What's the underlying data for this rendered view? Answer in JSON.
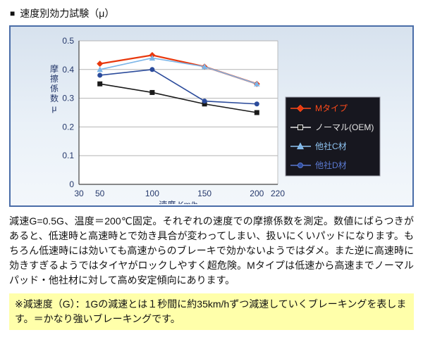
{
  "header": {
    "bullet": "■",
    "title": "速度別効力試験（μ）"
  },
  "chart_data": {
    "type": "line",
    "x": [
      50,
      100,
      150,
      200
    ],
    "series": [
      {
        "name": "Mタイプ",
        "color": "#e8380d",
        "legend_text_color": "#ff4a1a",
        "marker": "diamond",
        "values": [
          0.42,
          0.45,
          0.41,
          0.35
        ]
      },
      {
        "name": "ノーマル(OEM)",
        "color": "#1a1a1a",
        "legend_text_color": "#e6e6e6",
        "marker": "square",
        "values": [
          0.35,
          0.32,
          0.28,
          0.25
        ]
      },
      {
        "name": "他社C材",
        "color": "#7db6e8",
        "legend_text_color": "#8fc4f2",
        "marker": "triangle",
        "values": [
          0.4,
          0.44,
          0.41,
          0.35
        ]
      },
      {
        "name": "他社D材",
        "color": "#2b4b9b",
        "legend_text_color": "#5b79d0",
        "marker": "circle",
        "values": [
          0.38,
          0.4,
          0.29,
          0.28
        ]
      }
    ],
    "xlabel": "速度 Km/h",
    "ylabel": "摩擦係数μ",
    "xticks": [
      30,
      50,
      100,
      150,
      200,
      220
    ],
    "yticks": [
      0,
      0.1,
      0.2,
      0.3,
      0.4,
      0.5
    ],
    "xlim": [
      30,
      220
    ],
    "ylim": [
      0,
      0.5
    ],
    "grid": "horizontal",
    "legend_position": "right-inside"
  },
  "colors": {
    "chart_border": "#4a6da8",
    "axis_text": "#25386b",
    "grid_line": "#b4b4b4",
    "plot_bg": "#ffffff",
    "legend_bg": "#17171f",
    "legend_border": "#9a9aa6",
    "note_bg": "#ffffaa"
  },
  "description": "減速G=0.5G、温度＝200℃固定。それぞれの速度での摩擦係数を測定。数値にばらつきがあると、低速時と高速時とで効き具合が変わってしまい、扱いにくいパッドになります。もちろん低速時には効いても高速からのブレーキで効かないようではダメ。また逆に高速時に効きすぎるようではタイヤがロックしやすく超危険。Mタイプは低速から高速までノーマルパッド・他社材に対して高め安定傾向にあります。",
  "note": "※減速度（G）：1Gの減速とは１秒間に約35km/hずつ減速していくブレーキングを表します。＝かなり強いブレーキングです。"
}
